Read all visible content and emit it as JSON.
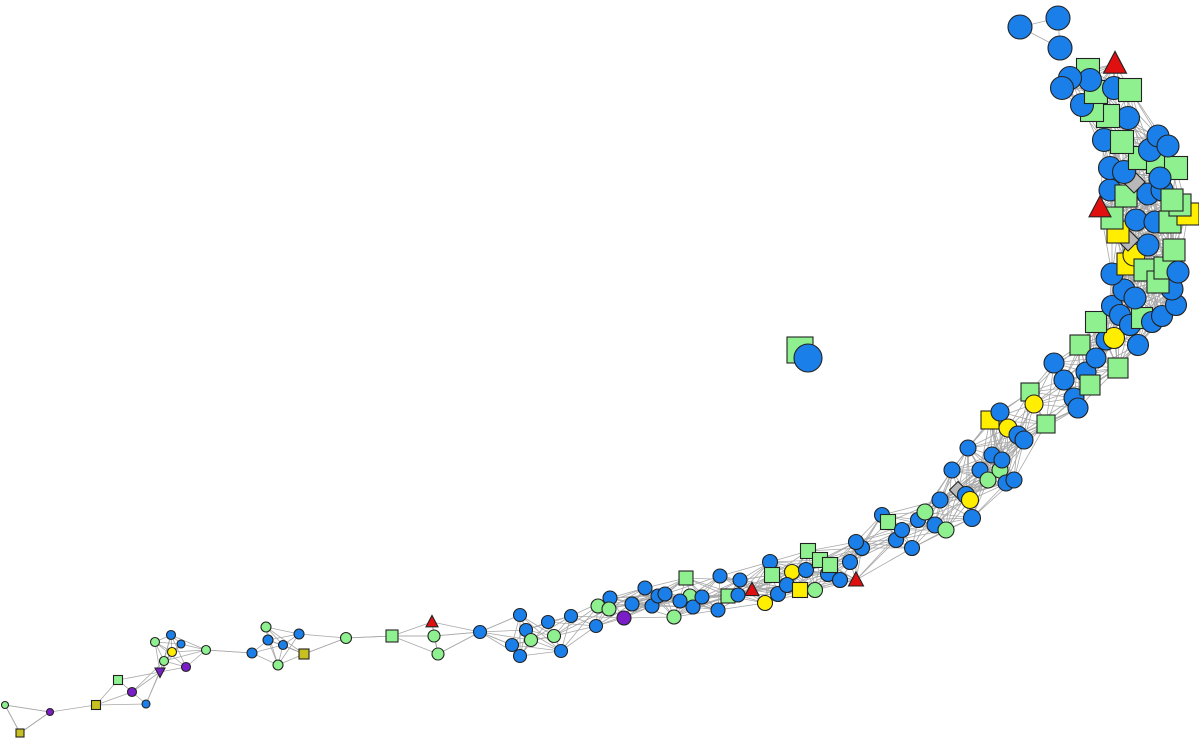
{
  "graph": {
    "kind": "network",
    "node_shapes": [
      "circle",
      "square",
      "triangle",
      "triangle-down",
      "square-hatched"
    ],
    "legend_colors": {
      "blue": "#1a7fe8",
      "green": "#8ff08f",
      "yellow": "#ffee00",
      "red": "#e01010",
      "purple": "#7a1fc8",
      "gray": "#b8b8b8",
      "olive": "#c8c020"
    },
    "edge_color": "#a8a8a8",
    "labels_shown": false
  }
}
